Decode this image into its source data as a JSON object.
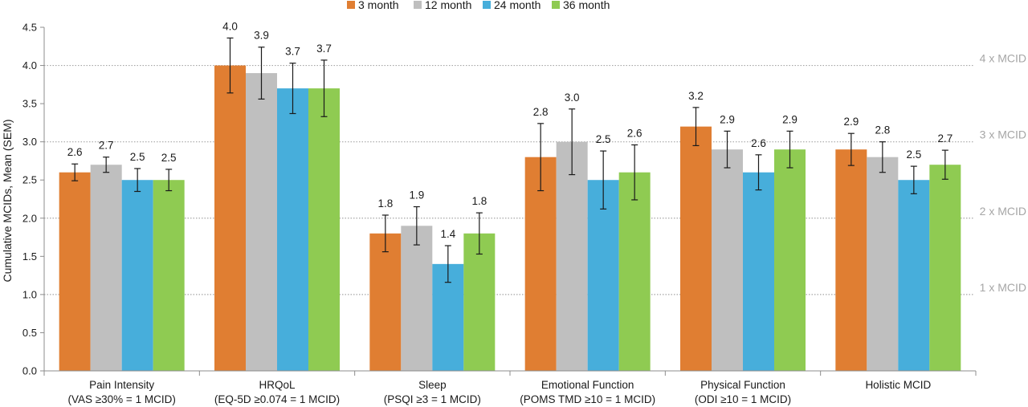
{
  "chart_data": {
    "type": "bar",
    "ylabel": "Cumulative MCIDs, Mean (SEM)",
    "ylim": [
      0,
      4.5
    ],
    "yticks": [
      "0.0",
      "0.5",
      "1.0",
      "1.5",
      "2.0",
      "2.5",
      "3.0",
      "3.5",
      "4.0",
      "4.5"
    ],
    "legend_position": "top",
    "categories": [
      {
        "line1": "Pain Intensity",
        "line2": "(VAS ≥30% = 1 MCID)"
      },
      {
        "line1": "HRQoL",
        "line2": "(EQ-5D ≥0.074 = 1 MCID)"
      },
      {
        "line1": "Sleep",
        "line2": "(PSQI ≥3 = 1 MCID)"
      },
      {
        "line1": "Emotional Function",
        "line2": "(POMS TMD ≥10 = 1 MCID)"
      },
      {
        "line1": "Physical Function",
        "line2": "(ODI ≥10 = 1 MCID)"
      },
      {
        "line1": "Holistic MCID",
        "line2": ""
      }
    ],
    "series": [
      {
        "name": "3 month",
        "color": "#e07e32",
        "values": [
          2.6,
          4.0,
          1.8,
          2.8,
          3.2,
          2.9
        ],
        "labels": [
          "2.6",
          "4.0",
          "1.8",
          "2.8",
          "3.2",
          "2.9"
        ],
        "err": [
          0.11,
          0.36,
          0.24,
          0.44,
          0.25,
          0.21
        ]
      },
      {
        "name": "12 month",
        "color": "#bfbfbf",
        "values": [
          2.7,
          3.9,
          1.9,
          3.0,
          2.9,
          2.8
        ],
        "labels": [
          "2.7",
          "3.9",
          "1.9",
          "3.0",
          "2.9",
          "2.8"
        ],
        "err": [
          0.1,
          0.34,
          0.25,
          0.43,
          0.24,
          0.2
        ]
      },
      {
        "name": "24 month",
        "color": "#47aedb",
        "values": [
          2.5,
          3.7,
          1.4,
          2.5,
          2.6,
          2.5
        ],
        "labels": [
          "2.5",
          "3.7",
          "1.4",
          "2.5",
          "2.6",
          "2.5"
        ],
        "err": [
          0.15,
          0.33,
          0.24,
          0.38,
          0.23,
          0.18
        ]
      },
      {
        "name": "36 month",
        "color": "#8fcb52",
        "values": [
          2.5,
          3.7,
          1.8,
          2.6,
          2.9,
          2.7
        ],
        "labels": [
          "2.5",
          "3.7",
          "1.8",
          "2.6",
          "2.9",
          "2.7"
        ],
        "err": [
          0.14,
          0.37,
          0.27,
          0.36,
          0.24,
          0.19
        ]
      }
    ],
    "reference_lines": [
      {
        "value": 1.0,
        "label": "1 x MCID"
      },
      {
        "value": 2.0,
        "label": "2 x MCID"
      },
      {
        "value": 3.0,
        "label": "3 x MCID"
      },
      {
        "value": 4.0,
        "label": "4 x MCID"
      }
    ]
  }
}
